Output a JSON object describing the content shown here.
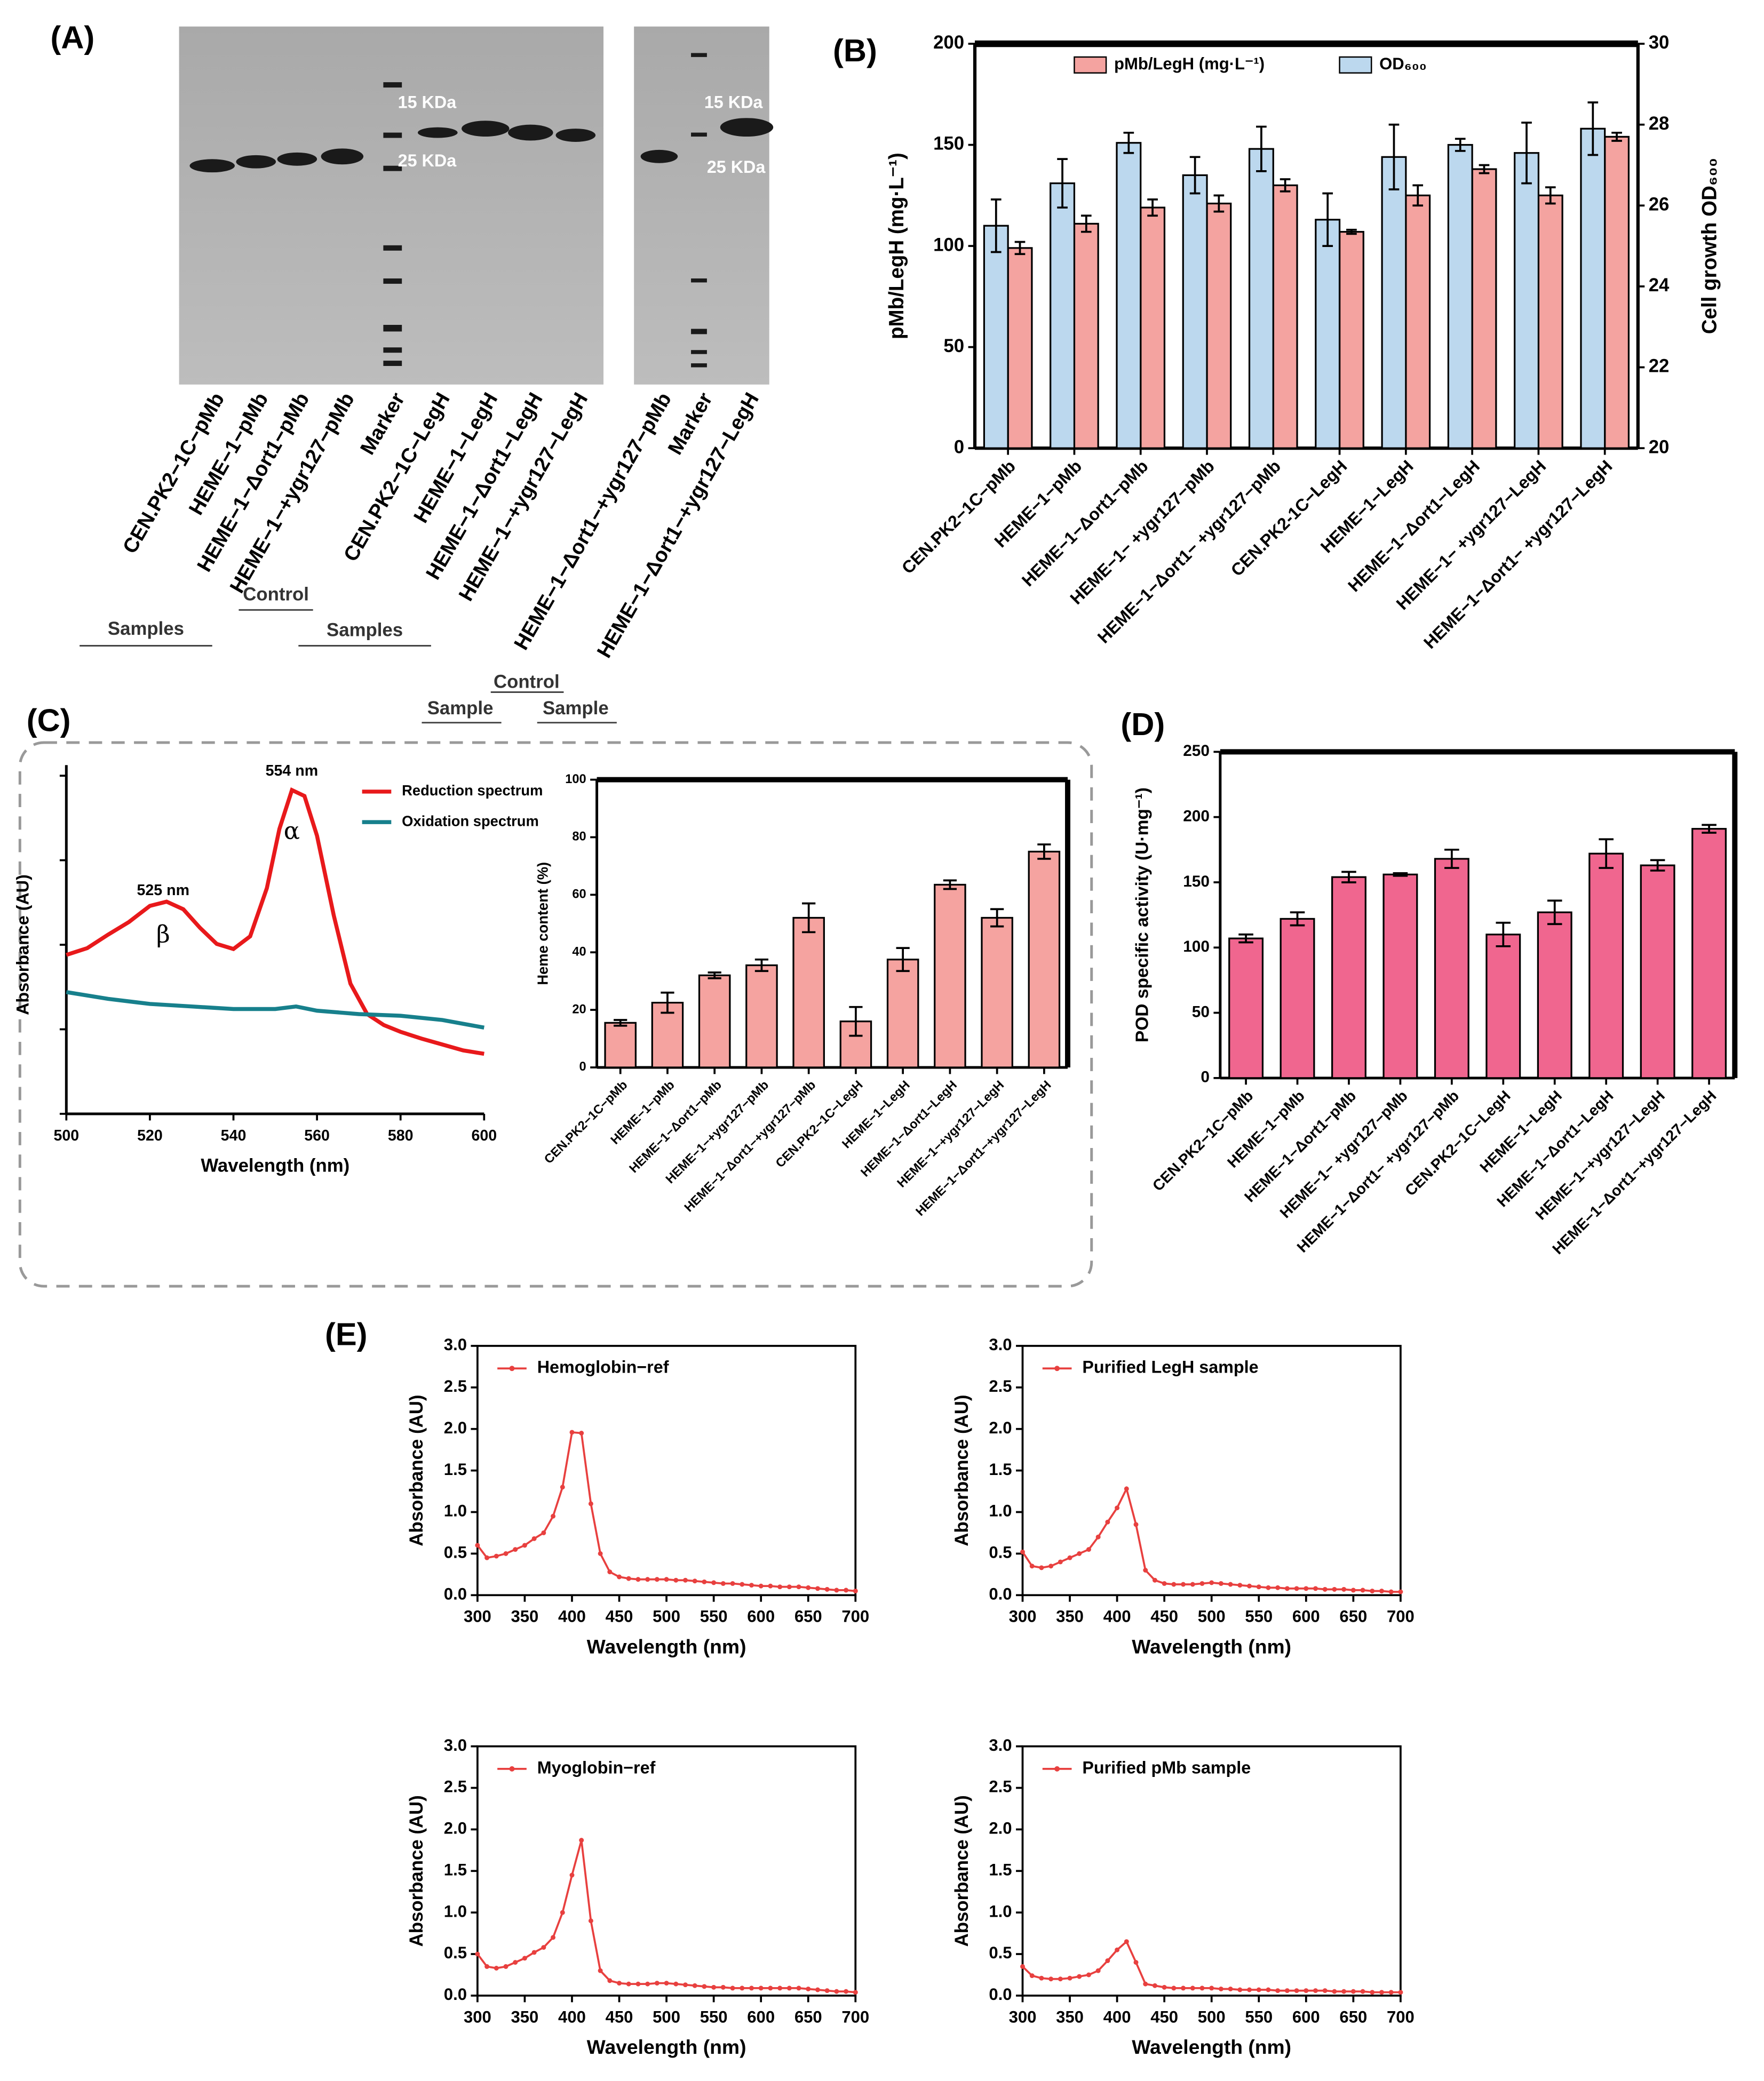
{
  "panel_labels": [
    "(A)",
    "(B)",
    "(C)",
    "(D)",
    "(E)"
  ],
  "gel": {
    "lanes": [
      "CEN.PK2−1C−pMb",
      "HEME−1−pMb",
      "HEME−1−Δort1−pMb",
      "HEME−1−+ygr127−pMb",
      "Marker",
      "CEN.PK2−1C−LegH",
      "HEME−1−LegH",
      "HEME−1−Δort1−LegH",
      "HEME−1−+ygr127−LegH",
      "HEME−1−Δort1−+ygr127−pMb",
      "Marker",
      "HEME−1−Δort1−+ygr127−LegH"
    ],
    "markers": [
      "15 KDa",
      "25 KDa",
      "15 KDa",
      "25 KDa"
    ],
    "groups": [
      "Samples",
      "Control",
      "Samples",
      "Sample",
      "Control",
      "Sample"
    ]
  },
  "chart_data": [
    {
      "type": "bar",
      "categories": [
        "CEN.PK2−1C−pMb",
        "HEME−1−pMb",
        "HEME−1−Δort1−pMb",
        "HEME−1− +ygr127−pMb",
        "HEME−1−Δort1− +ygr127−pMb",
        "CEN.PK2-1C−LegH",
        "HEME−1−LegH",
        "HEME−1−Δort1−LegH",
        "HEME−1− +ygr127−LegH",
        "HEME−1−Δort1− +ygr127−LegH"
      ],
      "series": [
        {
          "name": "pMb/LegH (mg·L⁻¹)",
          "color": "#f4a3a0",
          "values": [
            99,
            111,
            119,
            121,
            130,
            107,
            125,
            138,
            125,
            154
          ],
          "errors": [
            3,
            4,
            4,
            4,
            3,
            1,
            5,
            2,
            4,
            2
          ]
        },
        {
          "name": "OD₆₀₀",
          "color": "#bcd8ee",
          "axis": "y2",
          "values": [
            25.5,
            26.55,
            27.55,
            26.75,
            27.4,
            25.65,
            27.2,
            27.5,
            27.3,
            27.9
          ],
          "errors": [
            0.65,
            0.6,
            0.25,
            0.45,
            0.55,
            0.65,
            0.8,
            0.15,
            0.75,
            0.65
          ]
        }
      ],
      "ylabel": "pMb/LegH (mg·L⁻¹)",
      "y2label": "Cell growth OD₆₀₀",
      "ylim": [
        0,
        200
      ],
      "yticks": [
        0,
        50,
        100,
        150,
        200
      ],
      "y2lim": [
        20,
        30
      ],
      "y2ticks": [
        20,
        22,
        24,
        26,
        28,
        30
      ],
      "legend": "top"
    },
    {
      "type": "line",
      "xlabel": "Wavelength (nm)",
      "ylabel": "Absorbance (AU)",
      "xlim": [
        500,
        600
      ],
      "xticks": [
        500,
        520,
        540,
        560,
        580,
        600
      ],
      "ylim": [
        0,
        0.4
      ],
      "yticks": [
        0,
        0.1,
        0.2,
        0.3,
        0.4
      ],
      "ytick_labels": false,
      "legend": "upper right",
      "annotations": [
        "554 nm",
        "525 nm",
        "α",
        "β"
      ],
      "series": [
        {
          "name": "Reduction spectrum",
          "color": "#e8191b",
          "x": [
            500,
            505,
            510,
            515,
            520,
            524,
            528,
            532,
            536,
            540,
            544,
            548,
            551,
            554,
            557,
            560,
            564,
            568,
            572,
            576,
            580,
            585,
            590,
            595,
            600
          ],
          "values": [
            0.188,
            0.196,
            0.212,
            0.227,
            0.246,
            0.251,
            0.242,
            0.22,
            0.201,
            0.195,
            0.21,
            0.267,
            0.337,
            0.383,
            0.376,
            0.329,
            0.235,
            0.154,
            0.118,
            0.105,
            0.097,
            0.089,
            0.082,
            0.075,
            0.071
          ]
        },
        {
          "name": "Oxidation spectrum",
          "color": "#17808c",
          "x": [
            500,
            510,
            520,
            530,
            540,
            550,
            555,
            560,
            570,
            580,
            590,
            600
          ],
          "values": [
            0.144,
            0.136,
            0.13,
            0.127,
            0.124,
            0.124,
            0.127,
            0.122,
            0.118,
            0.116,
            0.111,
            0.102
          ]
        }
      ]
    },
    {
      "type": "bar",
      "categories": [
        "CEN.PK2−1C−pMb",
        "HEME−1−pMb",
        "HEME−1−Δort1−pMb",
        "HEME−1−+ygr127−pMb",
        "HEME−1−Δort1−+ygr127−pMb",
        "CEN.PK2−1C−LegH",
        "HEME−1−LegH",
        "HEME−1−Δort1−LegH",
        "HEME−1−+ygr127−LegH",
        "HEME−1−Δort1−+ygr127−LegH"
      ],
      "values": [
        15.5,
        22.5,
        32,
        35.5,
        52,
        16,
        37.5,
        63.5,
        52,
        75
      ],
      "errors": [
        1,
        3.5,
        1,
        2,
        5,
        5,
        4,
        1.5,
        3,
        2.5
      ],
      "color": "#f5a3a0",
      "ylabel": "Heme content (%)",
      "ylim": [
        0,
        100
      ],
      "yticks": [
        0,
        20,
        40,
        60,
        80,
        100
      ]
    },
    {
      "type": "bar",
      "categories": [
        "CEN.PK2−1C−pMb",
        "HEME−1−pMb",
        "HEME−1−Δort1−pMb",
        "HEME−1− +ygr127−pMb",
        "HEME−1−Δort1− +ygr127−pMb",
        "CEN.PK2−1C−LegH",
        "HEME−1−LegH",
        "HEME−1−Δort1−LegH",
        "HEME−1−+ygr127−LegH",
        "HEME−1−Δort1−+ygr127−LegH"
      ],
      "values": [
        107,
        122,
        154,
        156,
        168,
        110,
        127,
        172,
        163,
        191
      ],
      "errors": [
        3,
        5,
        4,
        1,
        7,
        9,
        9,
        11,
        4,
        3
      ],
      "color": "#f0668f",
      "ylabel": "POD specific activity (U·mg⁻¹)",
      "ylim": [
        0,
        250
      ],
      "yticks": [
        0,
        50,
        100,
        150,
        200,
        250
      ]
    },
    {
      "type": "line",
      "markers": true,
      "legend": "upper left",
      "xlabel": "Wavelength (nm)",
      "ylabel": "Absorbance (AU)",
      "xlim": [
        300,
        700
      ],
      "xticks": [
        300,
        350,
        400,
        450,
        500,
        550,
        600,
        650,
        700
      ],
      "ylim": [
        0,
        3
      ],
      "yticks": [
        {
          "value": 0,
          "label": "0.0"
        },
        0.5,
        {
          "value": 1,
          "label": "1.0"
        },
        1.5,
        {
          "value": 2,
          "label": "2.0"
        },
        2.5,
        {
          "value": 3,
          "label": "3.0"
        }
      ],
      "series": [
        {
          "name": "Hemoglobin−ref",
          "color": "#e8403f",
          "x": [
            300,
            310,
            320,
            330,
            340,
            350,
            360,
            370,
            380,
            390,
            400,
            410,
            420,
            430,
            440,
            450,
            460,
            470,
            480,
            490,
            500,
            510,
            520,
            530,
            540,
            550,
            560,
            570,
            580,
            590,
            600,
            610,
            620,
            630,
            640,
            650,
            660,
            670,
            680,
            690,
            700
          ],
          "values": [
            0.6,
            0.45,
            0.47,
            0.5,
            0.55,
            0.6,
            0.68,
            0.75,
            0.95,
            1.3,
            1.96,
            1.95,
            1.1,
            0.5,
            0.28,
            0.22,
            0.2,
            0.19,
            0.19,
            0.19,
            0.19,
            0.18,
            0.18,
            0.17,
            0.16,
            0.15,
            0.14,
            0.14,
            0.13,
            0.12,
            0.11,
            0.11,
            0.1,
            0.1,
            0.1,
            0.09,
            0.08,
            0.07,
            0.06,
            0.06,
            0.05
          ]
        }
      ]
    },
    {
      "type": "line",
      "markers": true,
      "legend": "upper left",
      "xlabel": "Wavelength (nm)",
      "ylabel": "Absorbance (AU)",
      "xlim": [
        300,
        700
      ],
      "xticks": [
        300,
        350,
        400,
        450,
        500,
        550,
        600,
        650,
        700
      ],
      "ylim": [
        0,
        3
      ],
      "yticks": [
        {
          "value": 0,
          "label": "0.0"
        },
        0.5,
        {
          "value": 1,
          "label": "1.0"
        },
        1.5,
        {
          "value": 2,
          "label": "2.0"
        },
        2.5,
        {
          "value": 3,
          "label": "3.0"
        }
      ],
      "series": [
        {
          "name": "Purified LegH sample",
          "color": "#e8403f",
          "x": [
            300,
            310,
            320,
            330,
            340,
            350,
            360,
            370,
            380,
            390,
            400,
            410,
            420,
            430,
            440,
            450,
            460,
            470,
            480,
            490,
            500,
            510,
            520,
            530,
            540,
            550,
            560,
            570,
            580,
            590,
            600,
            610,
            620,
            630,
            640,
            650,
            660,
            670,
            680,
            690,
            700
          ],
          "values": [
            0.52,
            0.35,
            0.33,
            0.35,
            0.4,
            0.45,
            0.5,
            0.55,
            0.7,
            0.88,
            1.05,
            1.28,
            0.85,
            0.3,
            0.18,
            0.14,
            0.13,
            0.13,
            0.13,
            0.14,
            0.15,
            0.14,
            0.13,
            0.12,
            0.11,
            0.1,
            0.09,
            0.09,
            0.08,
            0.08,
            0.08,
            0.08,
            0.07,
            0.07,
            0.07,
            0.06,
            0.06,
            0.05,
            0.05,
            0.04,
            0.04
          ]
        }
      ]
    },
    {
      "type": "line",
      "markers": true,
      "legend": "upper left",
      "xlabel": "Wavelength (nm)",
      "ylabel": "Absorbance (AU)",
      "xlim": [
        300,
        700
      ],
      "xticks": [
        300,
        350,
        400,
        450,
        500,
        550,
        600,
        650,
        700
      ],
      "ylim": [
        0,
        3
      ],
      "yticks": [
        {
          "value": 0,
          "label": "0.0"
        },
        0.5,
        {
          "value": 1,
          "label": "1.0"
        },
        1.5,
        {
          "value": 2,
          "label": "2.0"
        },
        2.5,
        {
          "value": 3,
          "label": "3.0"
        }
      ],
      "series": [
        {
          "name": "Myoglobin−ref",
          "color": "#e8403f",
          "x": [
            300,
            310,
            320,
            330,
            340,
            350,
            360,
            370,
            380,
            390,
            400,
            410,
            420,
            430,
            440,
            450,
            460,
            470,
            480,
            490,
            500,
            510,
            520,
            530,
            540,
            550,
            560,
            570,
            580,
            590,
            600,
            610,
            620,
            630,
            640,
            650,
            660,
            670,
            680,
            690,
            700
          ],
          "values": [
            0.5,
            0.35,
            0.33,
            0.35,
            0.4,
            0.45,
            0.52,
            0.58,
            0.7,
            1.0,
            1.45,
            1.87,
            0.9,
            0.3,
            0.18,
            0.15,
            0.14,
            0.14,
            0.14,
            0.15,
            0.15,
            0.14,
            0.13,
            0.12,
            0.11,
            0.1,
            0.1,
            0.09,
            0.09,
            0.09,
            0.09,
            0.09,
            0.09,
            0.09,
            0.09,
            0.08,
            0.07,
            0.06,
            0.05,
            0.05,
            0.04
          ]
        }
      ]
    },
    {
      "type": "line",
      "markers": true,
      "legend": "upper left",
      "xlabel": "Wavelength (nm)",
      "ylabel": "Absorbance (AU)",
      "xlim": [
        300,
        700
      ],
      "xticks": [
        300,
        350,
        400,
        450,
        500,
        550,
        600,
        650,
        700
      ],
      "ylim": [
        0,
        3
      ],
      "yticks": [
        {
          "value": 0,
          "label": "0.0"
        },
        0.5,
        {
          "value": 1,
          "label": "1.0"
        },
        1.5,
        {
          "value": 2,
          "label": "2.0"
        },
        2.5,
        {
          "value": 3,
          "label": "3.0"
        }
      ],
      "series": [
        {
          "name": "Purified pMb sample",
          "color": "#e8403f",
          "x": [
            300,
            310,
            320,
            330,
            340,
            350,
            360,
            370,
            380,
            390,
            400,
            410,
            420,
            430,
            440,
            450,
            460,
            470,
            480,
            490,
            500,
            510,
            520,
            530,
            540,
            550,
            560,
            570,
            580,
            590,
            600,
            610,
            620,
            630,
            640,
            650,
            660,
            670,
            680,
            690,
            700
          ],
          "values": [
            0.35,
            0.24,
            0.21,
            0.2,
            0.2,
            0.21,
            0.23,
            0.25,
            0.3,
            0.42,
            0.55,
            0.65,
            0.4,
            0.14,
            0.12,
            0.1,
            0.09,
            0.09,
            0.09,
            0.09,
            0.09,
            0.08,
            0.08,
            0.07,
            0.07,
            0.07,
            0.07,
            0.06,
            0.06,
            0.06,
            0.06,
            0.06,
            0.06,
            0.05,
            0.05,
            0.05,
            0.05,
            0.04,
            0.04,
            0.04,
            0.04
          ]
        }
      ]
    }
  ]
}
